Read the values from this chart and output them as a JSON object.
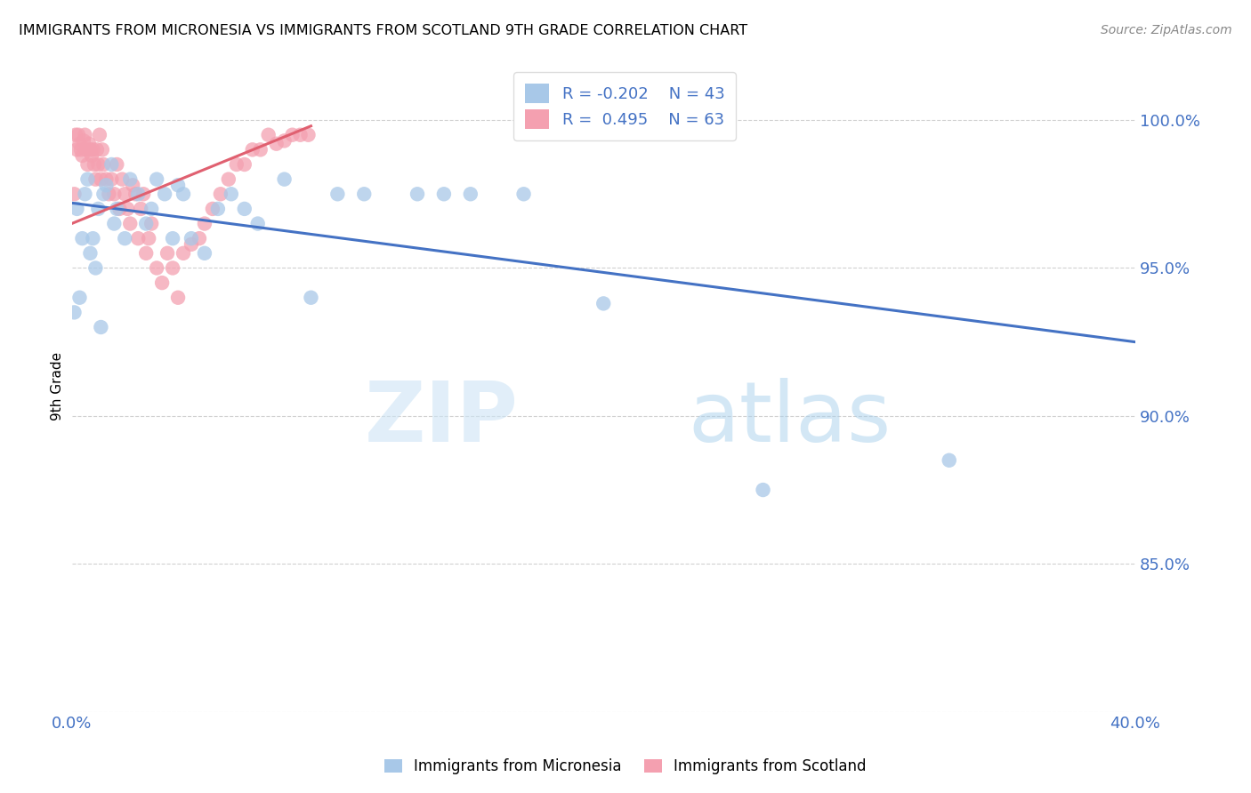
{
  "title": "IMMIGRANTS FROM MICRONESIA VS IMMIGRANTS FROM SCOTLAND 9TH GRADE CORRELATION CHART",
  "source": "Source: ZipAtlas.com",
  "ylabel": "9th Grade",
  "legend_label_blue": "Immigrants from Micronesia",
  "legend_label_pink": "Immigrants from Scotland",
  "r_blue": -0.202,
  "n_blue": 43,
  "r_pink": 0.495,
  "n_pink": 63,
  "xlim": [
    0.0,
    40.0
  ],
  "ylim": [
    80.0,
    102.0
  ],
  "x_ticks": [
    0.0,
    10.0,
    20.0,
    30.0,
    40.0
  ],
  "x_tick_labels": [
    "0.0%",
    "",
    "",
    "",
    "40.0%"
  ],
  "y_ticks": [
    80.0,
    85.0,
    90.0,
    95.0,
    100.0
  ],
  "y_tick_labels": [
    "",
    "85.0%",
    "90.0%",
    "95.0%",
    "100.0%"
  ],
  "color_blue": "#a8c8e8",
  "color_pink": "#f4a0b0",
  "color_blue_line": "#4472c4",
  "color_pink_line": "#e06070",
  "watermark_zip": "ZIP",
  "watermark_atlas": "atlas",
  "blue_x": [
    0.1,
    0.2,
    0.3,
    0.4,
    0.5,
    0.6,
    0.7,
    0.8,
    0.9,
    1.0,
    1.1,
    1.2,
    1.3,
    1.5,
    1.6,
    1.7,
    2.0,
    2.2,
    2.5,
    2.8,
    3.0,
    3.2,
    3.5,
    3.8,
    4.0,
    4.2,
    4.5,
    5.0,
    5.5,
    6.0,
    6.5,
    7.0,
    8.0,
    9.0,
    10.0,
    11.0,
    13.0,
    14.0,
    15.0,
    17.0,
    20.0,
    26.0,
    33.0
  ],
  "blue_y": [
    93.5,
    97.0,
    94.0,
    96.0,
    97.5,
    98.0,
    95.5,
    96.0,
    95.0,
    97.0,
    93.0,
    97.5,
    97.8,
    98.5,
    96.5,
    97.0,
    96.0,
    98.0,
    97.5,
    96.5,
    97.0,
    98.0,
    97.5,
    96.0,
    97.8,
    97.5,
    96.0,
    95.5,
    97.0,
    97.5,
    97.0,
    96.5,
    98.0,
    94.0,
    97.5,
    97.5,
    97.5,
    97.5,
    97.5,
    97.5,
    93.8,
    87.5,
    88.5
  ],
  "pink_x": [
    0.1,
    0.15,
    0.2,
    0.25,
    0.3,
    0.35,
    0.4,
    0.45,
    0.5,
    0.55,
    0.6,
    0.65,
    0.7,
    0.75,
    0.8,
    0.85,
    0.9,
    0.95,
    1.0,
    1.05,
    1.1,
    1.15,
    1.2,
    1.3,
    1.4,
    1.5,
    1.6,
    1.7,
    1.8,
    1.9,
    2.0,
    2.1,
    2.2,
    2.3,
    2.4,
    2.5,
    2.6,
    2.7,
    2.8,
    2.9,
    3.0,
    3.2,
    3.4,
    3.6,
    3.8,
    4.0,
    4.2,
    4.5,
    4.8,
    5.0,
    5.3,
    5.6,
    5.9,
    6.2,
    6.5,
    6.8,
    7.1,
    7.4,
    7.7,
    8.0,
    8.3,
    8.6,
    8.9
  ],
  "pink_y": [
    97.5,
    99.5,
    99.0,
    99.5,
    99.2,
    99.0,
    98.8,
    99.3,
    99.5,
    99.0,
    98.5,
    99.2,
    99.0,
    98.8,
    99.0,
    98.5,
    98.0,
    99.0,
    98.5,
    99.5,
    98.0,
    99.0,
    98.5,
    98.0,
    97.5,
    98.0,
    97.5,
    98.5,
    97.0,
    98.0,
    97.5,
    97.0,
    96.5,
    97.8,
    97.5,
    96.0,
    97.0,
    97.5,
    95.5,
    96.0,
    96.5,
    95.0,
    94.5,
    95.5,
    95.0,
    94.0,
    95.5,
    95.8,
    96.0,
    96.5,
    97.0,
    97.5,
    98.0,
    98.5,
    98.5,
    99.0,
    99.0,
    99.5,
    99.2,
    99.3,
    99.5,
    99.5,
    99.5
  ],
  "blue_line_x0": 0.0,
  "blue_line_y0": 97.2,
  "blue_line_x1": 40.0,
  "blue_line_y1": 92.5,
  "pink_line_x0": 0.0,
  "pink_line_y0": 96.5,
  "pink_line_x1": 9.0,
  "pink_line_y1": 99.8
}
